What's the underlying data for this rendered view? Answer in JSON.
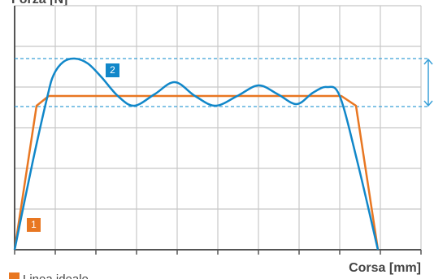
{
  "chart_data": {
    "type": "line",
    "y_label": "Forza [N]",
    "x_label": "Corsa [mm]",
    "xlim": [
      0,
      10
    ],
    "ylim": [
      0,
      6
    ],
    "xticks": [
      0,
      1,
      2,
      3,
      4,
      5,
      6,
      7,
      8,
      9,
      10
    ],
    "yticks": [
      0,
      1,
      2,
      3,
      4,
      5,
      6
    ],
    "grid": true,
    "reference_lines": [
      4.7,
      3.52
    ],
    "reference_color": "#3aa0d8",
    "series": [
      {
        "name": "Linea ideale",
        "label": "1",
        "color": "#e87722",
        "x": [
          0,
          0.54,
          0.84,
          8.04,
          8.4,
          8.94
        ],
        "values": [
          0,
          3.54,
          3.78,
          3.78,
          3.54,
          0
        ]
      },
      {
        "label": "2",
        "color": "#1187c9",
        "x": [
          0,
          0.44,
          0.8,
          0.96,
          1.2,
          1.48,
          1.8,
          2.14,
          2.54,
          2.94,
          3.44,
          3.94,
          4.44,
          4.94,
          5.48,
          6.0,
          6.48,
          6.94,
          7.34,
          7.68,
          8.0,
          8.44,
          8.94
        ],
        "values": [
          0,
          2.14,
          3.74,
          4.3,
          4.62,
          4.7,
          4.58,
          4.24,
          3.78,
          3.54,
          3.82,
          4.12,
          3.78,
          3.54,
          3.78,
          4.04,
          3.82,
          3.58,
          3.86,
          4.0,
          3.78,
          2.14,
          0
        ]
      }
    ]
  }
}
